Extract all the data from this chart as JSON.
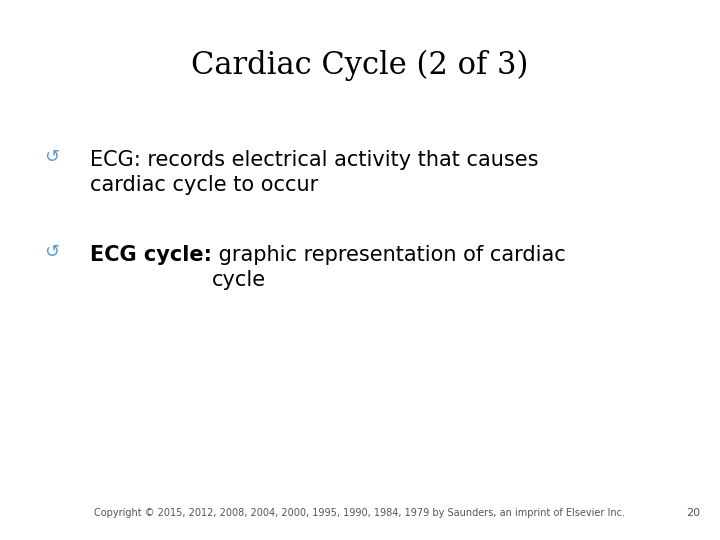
{
  "title": "Cardiac Cycle (2 of 3)",
  "title_fontsize": 22,
  "title_color": "#000000",
  "title_font": "DejaVu Serif",
  "background_color": "#ffffff",
  "bullet_color": "#5b9bd5",
  "bullet_symbol": "↺",
  "text_color": "#000000",
  "body_fontsize": 15,
  "bullet_fontsize": 13,
  "bullet1": {
    "text": "ECG: records electrical activity that causes\ncardiac cycle to occur"
  },
  "bullet2_bold": "ECG cycle:",
  "bullet2_normal": " graphic representation of cardiac\ncycle",
  "footer_text": "Copyright © 2015, 2012, 2008, 2004, 2000, 1995, 1990, 1984, 1979 by Saunders, an imprint of Elsevier Inc.",
  "footer_fontsize": 7,
  "page_number": "20",
  "page_number_fontsize": 8
}
